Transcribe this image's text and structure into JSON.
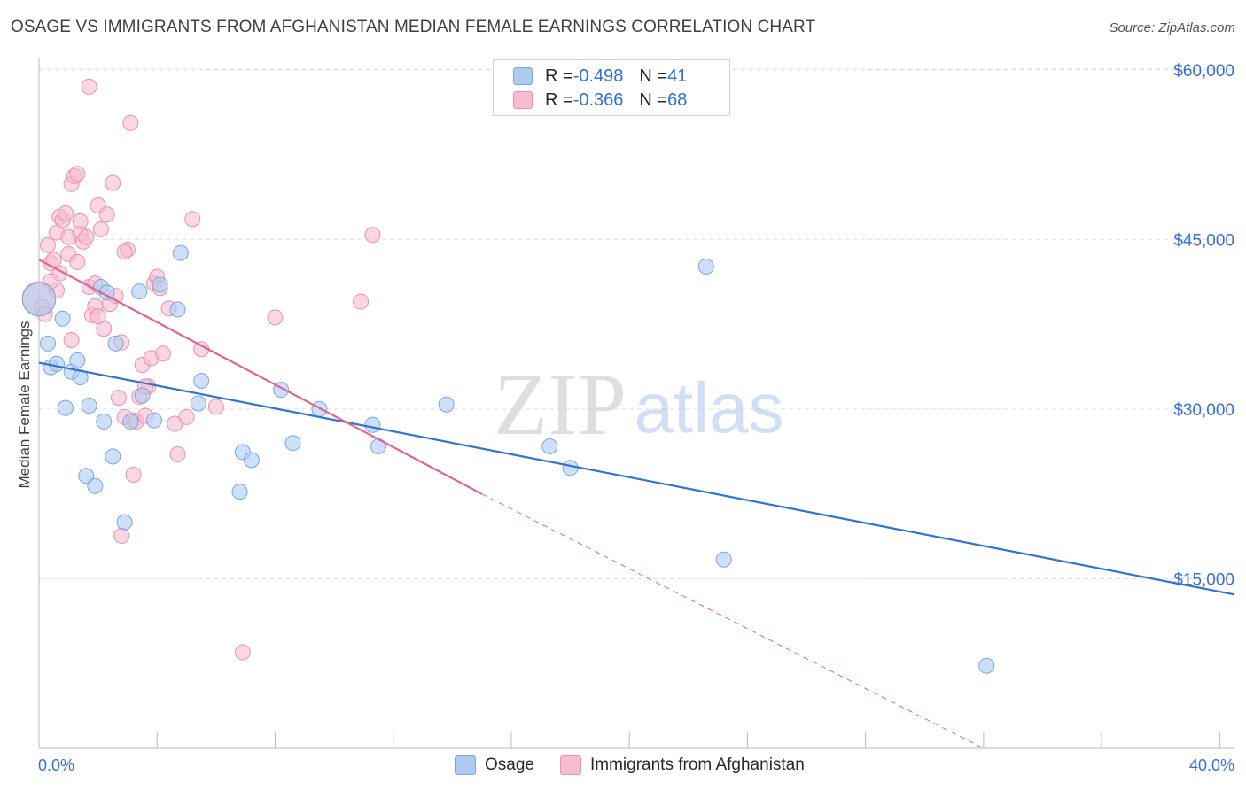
{
  "header": {
    "title": "OSAGE VS IMMIGRANTS FROM AFGHANISTAN MEDIAN FEMALE EARNINGS CORRELATION CHART",
    "source": "Source: ZipAtlas.com"
  },
  "watermark": {
    "zip": "ZIP",
    "atlas": "atlas"
  },
  "legend": {
    "osage": {
      "r_label": "R = ",
      "r_value": "-0.498",
      "n_label": "N = ",
      "n_value": "41"
    },
    "afghan": {
      "r_label": "R = ",
      "r_value": "-0.366",
      "n_label": "N = ",
      "n_value": "68"
    }
  },
  "colors": {
    "osage_fill": "#aecbf2",
    "osage_stroke": "#7aa6e0",
    "osage_line": "#2f74d4",
    "afghan_fill": "#f7bccf",
    "afghan_stroke": "#ec8fae",
    "afghan_line": "#e2638f",
    "tick_text": "#3a6fd1",
    "grid": "#e0e0e6"
  },
  "chart_data": {
    "type": "scatter",
    "title": "OSAGE VS IMMIGRANTS FROM AFGHANISTAN MEDIAN FEMALE EARNINGS CORRELATION CHART",
    "xlabel": "",
    "ylabel": "Median Female Earnings",
    "xlim": [
      0,
      40.5
    ],
    "ylim": [
      0,
      61000
    ],
    "x_tick_labels": [
      {
        "value": 0,
        "label": "0.0%"
      },
      {
        "value": 40,
        "label": "40.0%"
      }
    ],
    "x_minor_ticks": [
      0,
      4,
      8,
      12,
      16,
      20,
      24,
      28,
      32,
      36,
      40
    ],
    "y_ticks": [
      {
        "value": 15000,
        "label": "$15,000"
      },
      {
        "value": 30000,
        "label": "$30,000"
      },
      {
        "value": 45000,
        "label": "$45,000"
      },
      {
        "value": 60000,
        "label": "$60,000"
      }
    ],
    "legend_position": "top-center",
    "series": [
      {
        "name": "Osage",
        "r": -0.498,
        "n": 41,
        "trend": {
          "x0": 0,
          "y0": 34100,
          "x1": 40.5,
          "y1": 13600,
          "dashed_to": null
        },
        "points": [
          [
            0.0,
            39700,
            2.2
          ],
          [
            0.3,
            35800,
            1
          ],
          [
            0.4,
            33700,
            1
          ],
          [
            0.6,
            34000,
            1
          ],
          [
            0.8,
            38000,
            1
          ],
          [
            0.9,
            30100,
            1
          ],
          [
            1.1,
            33300,
            1
          ],
          [
            1.3,
            34300,
            1
          ],
          [
            1.4,
            32800,
            1
          ],
          [
            1.6,
            24100,
            1
          ],
          [
            1.7,
            30300,
            1
          ],
          [
            1.9,
            23200,
            1
          ],
          [
            2.1,
            40800,
            1
          ],
          [
            2.2,
            28900,
            1
          ],
          [
            2.3,
            40300,
            1
          ],
          [
            2.5,
            25800,
            1
          ],
          [
            2.6,
            35800,
            1
          ],
          [
            2.9,
            20000,
            1
          ],
          [
            3.1,
            28900,
            1
          ],
          [
            3.4,
            40400,
            1
          ],
          [
            3.5,
            31200,
            1
          ],
          [
            3.9,
            29000,
            1
          ],
          [
            4.1,
            41000,
            1
          ],
          [
            4.7,
            38800,
            1
          ],
          [
            4.8,
            43800,
            1
          ],
          [
            5.4,
            30500,
            1
          ],
          [
            5.5,
            32500,
            1
          ],
          [
            6.8,
            22700,
            1
          ],
          [
            6.9,
            26200,
            1
          ],
          [
            7.2,
            25500,
            1
          ],
          [
            8.2,
            31700,
            1
          ],
          [
            8.6,
            27000,
            1
          ],
          [
            9.5,
            30000,
            1
          ],
          [
            11.3,
            28600,
            1
          ],
          [
            11.5,
            26700,
            1
          ],
          [
            13.8,
            30400,
            1
          ],
          [
            17.3,
            26700,
            1
          ],
          [
            18.0,
            24800,
            1
          ],
          [
            22.6,
            42600,
            1
          ],
          [
            23.2,
            16700,
            1
          ],
          [
            32.1,
            7300,
            1
          ]
        ]
      },
      {
        "name": "Immigrants from Afghanistan",
        "r": -0.366,
        "n": 68,
        "trend": {
          "x0": 0,
          "y0": 43200,
          "x1": 15.0,
          "y1": 22500,
          "dashed_to": {
            "x": 32.0,
            "y": 0
          }
        },
        "points": [
          [
            0.0,
            39800,
            2.2
          ],
          [
            0.1,
            39000,
            1
          ],
          [
            0.2,
            38400,
            1
          ],
          [
            0.3,
            44500,
            1
          ],
          [
            0.4,
            42900,
            1
          ],
          [
            0.5,
            43200,
            1
          ],
          [
            0.6,
            45600,
            1
          ],
          [
            0.7,
            47000,
            1
          ],
          [
            0.7,
            42000,
            1
          ],
          [
            0.8,
            46700,
            1
          ],
          [
            0.9,
            47300,
            1
          ],
          [
            1.0,
            45200,
            1
          ],
          [
            1.0,
            43700,
            1
          ],
          [
            1.1,
            49900,
            1
          ],
          [
            1.2,
            50600,
            1
          ],
          [
            1.3,
            50800,
            1
          ],
          [
            1.4,
            45500,
            1
          ],
          [
            1.5,
            44800,
            1
          ],
          [
            1.6,
            45200,
            1
          ],
          [
            1.7,
            40800,
            1
          ],
          [
            1.8,
            38300,
            1
          ],
          [
            1.9,
            39100,
            1
          ],
          [
            1.9,
            41100,
            1
          ],
          [
            2.0,
            48000,
            1
          ],
          [
            2.1,
            45900,
            1
          ],
          [
            2.2,
            37100,
            1
          ],
          [
            2.3,
            47200,
            1
          ],
          [
            2.4,
            39300,
            1
          ],
          [
            2.5,
            50000,
            1
          ],
          [
            2.6,
            40000,
            1
          ],
          [
            2.7,
            31000,
            1
          ],
          [
            2.8,
            35900,
            1
          ],
          [
            2.9,
            29300,
            1
          ],
          [
            3.0,
            44100,
            1
          ],
          [
            3.1,
            55300,
            1
          ],
          [
            3.2,
            29000,
            1
          ],
          [
            3.3,
            28900,
            1
          ],
          [
            3.4,
            31100,
            1
          ],
          [
            3.5,
            33900,
            1
          ],
          [
            3.6,
            29400,
            1
          ],
          [
            3.7,
            32000,
            1
          ],
          [
            3.8,
            34500,
            1
          ],
          [
            3.9,
            41100,
            1
          ],
          [
            4.0,
            41700,
            1
          ],
          [
            4.2,
            34900,
            1
          ],
          [
            4.4,
            38900,
            1
          ],
          [
            4.6,
            28700,
            1
          ],
          [
            4.7,
            26000,
            1
          ],
          [
            5.0,
            29300,
            1
          ],
          [
            5.2,
            46800,
            1
          ],
          [
            5.5,
            35300,
            1
          ],
          [
            6.0,
            30200,
            1
          ],
          [
            6.9,
            8500,
            1
          ],
          [
            8.0,
            38100,
            1
          ],
          [
            10.9,
            39500,
            1
          ],
          [
            11.3,
            45400,
            1
          ],
          [
            1.7,
            58500,
            1
          ],
          [
            2.8,
            18800,
            1
          ],
          [
            3.2,
            24200,
            1
          ],
          [
            1.3,
            43000,
            1
          ],
          [
            0.6,
            40500,
            1
          ],
          [
            2.0,
            38200,
            1
          ],
          [
            1.4,
            46600,
            1
          ],
          [
            0.4,
            41300,
            1
          ],
          [
            3.6,
            32000,
            1
          ],
          [
            2.9,
            43900,
            1
          ],
          [
            4.1,
            40700,
            1
          ],
          [
            1.1,
            36100,
            1
          ]
        ]
      }
    ]
  },
  "bottom_legend": {
    "osage": "Osage",
    "afghan": "Immigrants from Afghanistan"
  }
}
